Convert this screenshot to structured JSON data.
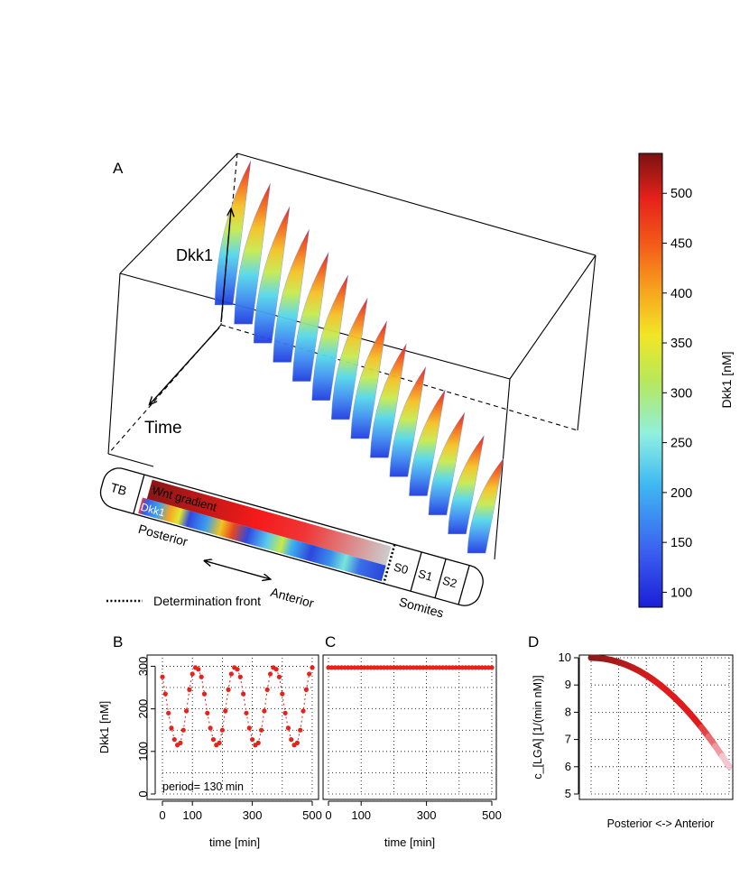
{
  "panels": {
    "a": "A",
    "b": "B",
    "c": "C",
    "d": "D"
  },
  "panel_a": {
    "z_label": "Dkk1",
    "time_label": "Time",
    "tb": "TB",
    "wnt_label": "Wnt gradient",
    "dkk1_label": "Dkk1",
    "posterior": "Posterior",
    "anterior": "Anterior",
    "somites": [
      "S0",
      "S1",
      "S2"
    ],
    "somites_label": "Somites",
    "legend_front": "Determination front"
  },
  "colors": {
    "dot": "#e8221a",
    "wnt_dark": "#8b1616",
    "wnt_red": "#f51a1a",
    "wnt_light": "#c8c8c8",
    "d_dark": "#8b1a1a",
    "d_red": "#e01b1b",
    "d_light": "#f4c6cf"
  },
  "chart_data": [
    {
      "id": "colorbar",
      "type": "heatmap",
      "title": "Dkk1 [nM]",
      "range": [
        85,
        540
      ],
      "ticks": [
        100,
        150,
        200,
        250,
        300,
        350,
        400,
        450,
        500
      ]
    },
    {
      "id": "B",
      "type": "scatter",
      "xlabel": "time [min]",
      "ylabel": "Dkk1 [nM]",
      "xlim": [
        0,
        500
      ],
      "ylim": [
        0,
        320
      ],
      "xticks": [
        0,
        100,
        300,
        500
      ],
      "yticks": [
        0,
        100,
        200,
        300
      ],
      "annotation": "period= 130 min",
      "period": 130,
      "x": [
        0,
        10,
        20,
        30,
        40,
        50,
        60,
        70,
        80,
        90,
        100,
        110,
        120,
        130,
        140,
        150,
        160,
        170,
        180,
        190,
        200,
        210,
        220,
        230,
        240,
        250,
        260,
        270,
        280,
        290,
        300,
        310,
        320,
        330,
        340,
        350,
        360,
        370,
        380,
        390,
        400,
        410,
        420,
        430,
        440,
        450,
        460,
        470,
        480,
        490,
        500
      ],
      "y": [
        275,
        235,
        190,
        155,
        128,
        115,
        120,
        150,
        195,
        245,
        282,
        297,
        293,
        275,
        235,
        190,
        155,
        128,
        115,
        120,
        150,
        195,
        245,
        282,
        297,
        293,
        275,
        235,
        190,
        155,
        128,
        115,
        120,
        150,
        195,
        245,
        282,
        297,
        293,
        275,
        235,
        190,
        155,
        128,
        115,
        120,
        150,
        195,
        245,
        282,
        297
      ]
    },
    {
      "id": "C",
      "type": "scatter",
      "xlabel": "time [min]",
      "xlim": [
        0,
        500
      ],
      "ylim": [
        0,
        320
      ],
      "xticks": [
        0,
        100,
        300,
        500
      ],
      "constant_value": 297
    },
    {
      "id": "D",
      "type": "line",
      "xlabel": "Posterior <-> Anterior",
      "ylabel": "c_[LGA] [1/(min nM)]",
      "xlim": [
        0,
        1
      ],
      "ylim": [
        5,
        10
      ],
      "yticks": [
        5,
        6,
        7,
        8,
        9,
        10
      ],
      "x": [
        0,
        0.05,
        0.1,
        0.15,
        0.2,
        0.25,
        0.3,
        0.35,
        0.4,
        0.45,
        0.5,
        0.55,
        0.6,
        0.65,
        0.7,
        0.75,
        0.8,
        0.85,
        0.9,
        0.95,
        1.0
      ],
      "y": [
        10.0,
        9.99,
        9.96,
        9.91,
        9.84,
        9.75,
        9.64,
        9.51,
        9.36,
        9.19,
        9.0,
        8.79,
        8.56,
        8.31,
        8.04,
        7.75,
        7.44,
        7.11,
        6.76,
        6.39,
        6.0
      ]
    }
  ]
}
